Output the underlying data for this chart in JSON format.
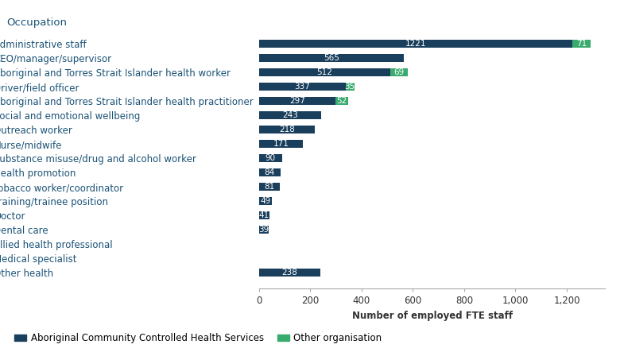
{
  "title": "Occupation",
  "xlabel": "Number of employed FTE staff",
  "categories": [
    "Other health",
    "Medical specialist",
    "Allied health professional",
    "Dental care",
    "Doctor",
    "Training/trainee position",
    "Tobacco worker/coordinator",
    "Health promotion",
    "Substance misuse/drug and alcohol worker",
    "Nurse/midwife",
    "Outreach worker",
    "Social and emotional wellbeing",
    "Aboriginal and Torres Strait Islander health practitioner",
    "Driver/field officer",
    "Aboriginal and Torres Strait Islander health worker",
    "CEO/manager/supervisor",
    "Administrative staff"
  ],
  "accho_values": [
    238,
    0,
    2,
    39,
    41,
    49,
    81,
    84,
    90,
    171,
    218,
    243,
    297,
    337,
    512,
    565,
    1221
  ],
  "other_values": [
    0,
    0,
    0,
    0,
    0,
    0,
    0,
    0,
    0,
    0,
    0,
    0,
    52,
    35,
    69,
    0,
    71
  ],
  "accho_color": "#1a3f5c",
  "other_color": "#3aab6e",
  "bar_height": 0.55,
  "xlim": [
    0,
    1350
  ],
  "xticks": [
    0,
    200,
    400,
    600,
    800,
    1000,
    1200
  ],
  "legend_accho": "Aboriginal Community Controlled Health Services",
  "legend_other": "Other organisation",
  "bg_color": "#ffffff",
  "title_fontsize": 9.5,
  "label_fontsize": 8.5,
  "tick_fontsize": 8.5,
  "annotation_fontsize": 7.5,
  "label_color": "#1a5276",
  "title_color": "#1a5276"
}
